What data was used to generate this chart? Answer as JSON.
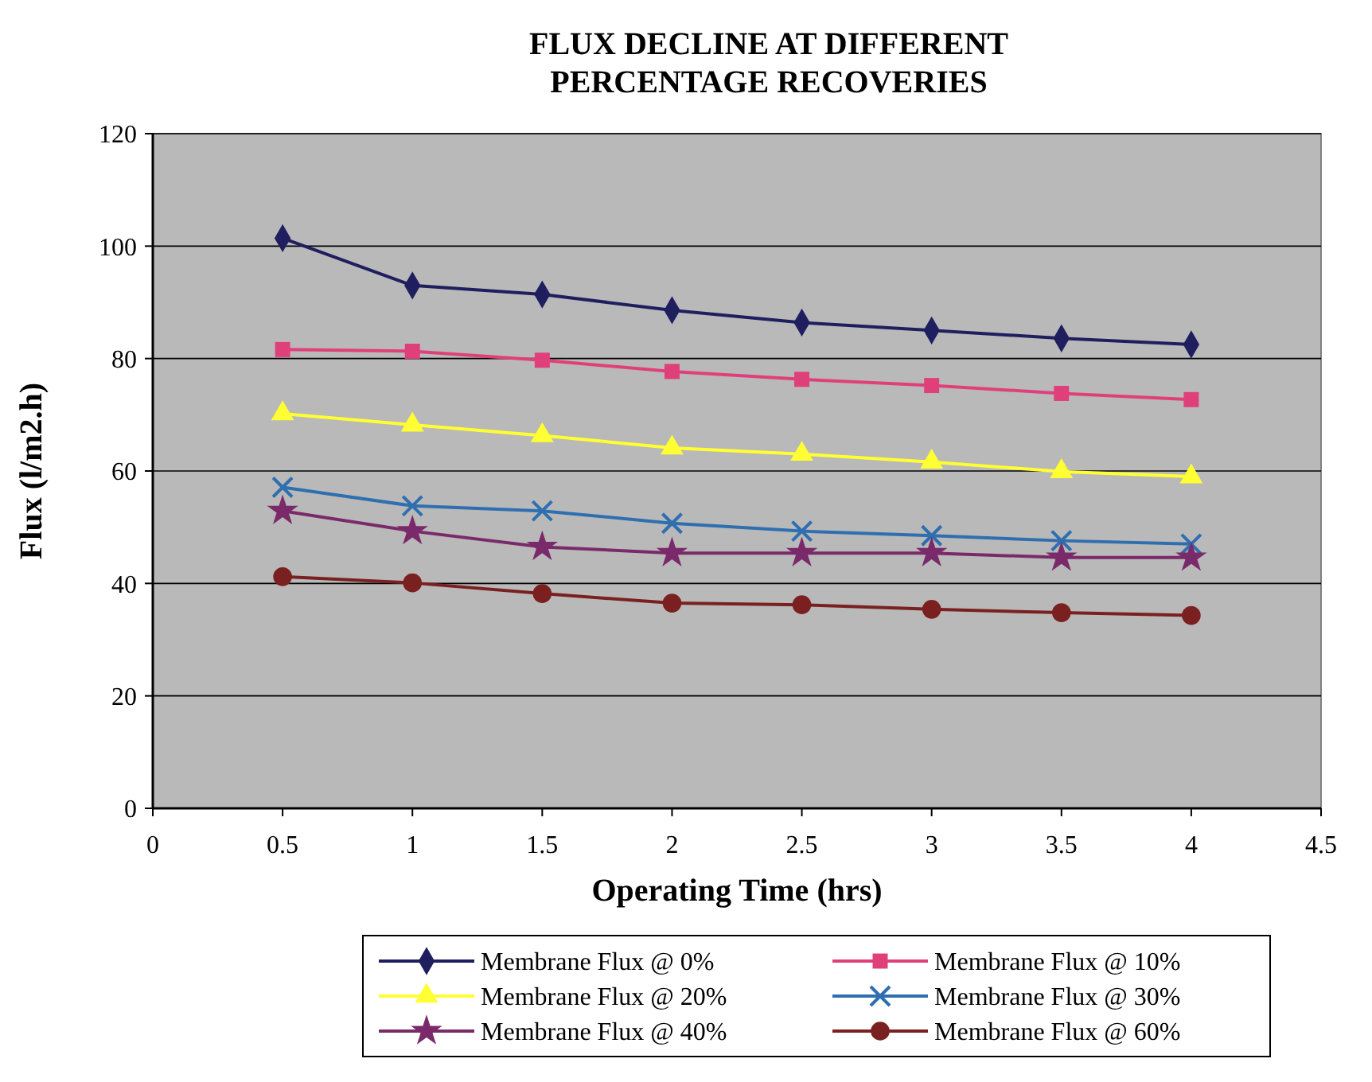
{
  "chart_data": {
    "type": "line",
    "title": "FLUX DECLINE AT DIFFERENT PERCENTAGE RECOVERIES",
    "xlabel": "Operating Time (hrs)",
    "ylabel": "Flux (l/m2.h)",
    "x": [
      0.5,
      1,
      1.5,
      2,
      2.5,
      3,
      3.5,
      4
    ],
    "xlim": [
      0,
      4.5
    ],
    "xticks": [
      0,
      0.5,
      1,
      1.5,
      2,
      2.5,
      3,
      3.5,
      4,
      4.5
    ],
    "ylim": [
      0,
      120
    ],
    "yticks": [
      0,
      20,
      40,
      60,
      80,
      100,
      120
    ],
    "grid": "y",
    "legend": "bottom",
    "series": [
      {
        "name": "Membrane Flux @ 0%",
        "color": "#1f1f5f",
        "marker": "diamond",
        "values": [
          101.4,
          93,
          91.4,
          88.6,
          86.4,
          85,
          83.6,
          82.5
        ]
      },
      {
        "name": "Membrane Flux @ 10%",
        "color": "#e0407a",
        "marker": "square",
        "values": [
          81.6,
          81.3,
          79.7,
          77.7,
          76.3,
          75.2,
          73.8,
          72.7
        ]
      },
      {
        "name": "Membrane Flux @ 20%",
        "color": "#ffff33",
        "marker": "triangle",
        "values": [
          70.2,
          68.2,
          66.3,
          64.1,
          63,
          61.6,
          59.9,
          59
        ]
      },
      {
        "name": "Membrane Flux @ 30%",
        "color": "#2f6fb0",
        "marker": "cross",
        "values": [
          57.1,
          53.8,
          52.9,
          50.7,
          49.3,
          48.5,
          47.6,
          47
        ]
      },
      {
        "name": "Membrane Flux @ 40%",
        "color": "#7a2a6a",
        "marker": "star",
        "values": [
          52.9,
          49.3,
          46.5,
          45.4,
          45.4,
          45.4,
          44.6,
          44.6
        ]
      },
      {
        "name": "Membrane Flux @ 60%",
        "color": "#7a2020",
        "marker": "circle",
        "values": [
          41.2,
          40.1,
          38.2,
          36.5,
          36.2,
          35.4,
          34.8,
          34.3
        ]
      }
    ]
  }
}
